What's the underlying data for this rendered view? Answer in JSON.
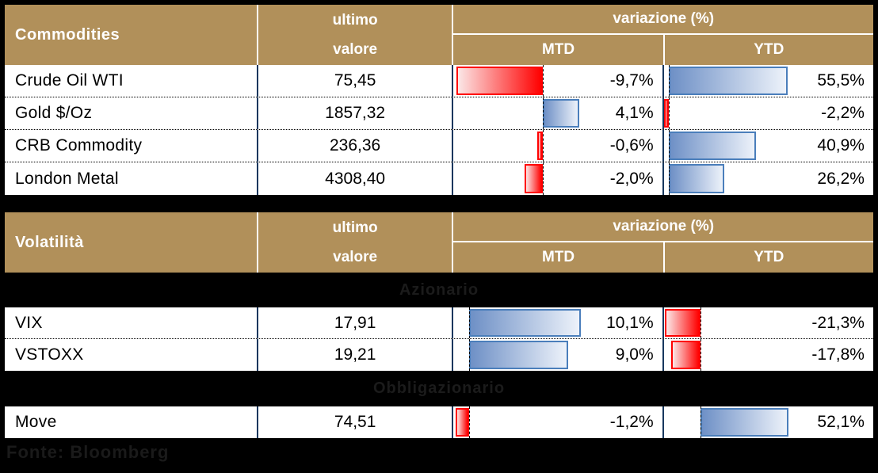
{
  "header_labels": {
    "ultimo": "ultimo",
    "valore": "valore",
    "variazione": "variazione (%)",
    "mtd": "MTD",
    "ytd": "YTD"
  },
  "tables": [
    {
      "title": "Commodities",
      "mtd_axis_pct": 42.6,
      "mtd_scale_pct_per_point": 4.26,
      "ytd_axis_pct": 2.3,
      "ytd_scale_pct_per_point": 1.022,
      "rows": [
        {
          "label": "Crude Oil WTI",
          "value": "75,45",
          "mtd": -9.7,
          "mtd_label": "-9,7%",
          "ytd": 55.5,
          "ytd_label": "55,5%"
        },
        {
          "label": "Gold $/Oz",
          "value": "1857,32",
          "mtd": 4.1,
          "mtd_label": "4,1%",
          "ytd": -2.2,
          "ytd_label": "-2,2%"
        },
        {
          "label": "CRB Commodity",
          "value": "236,36",
          "mtd": -0.6,
          "mtd_label": "-0,6%",
          "ytd": 40.9,
          "ytd_label": "40,9%"
        },
        {
          "label": "London Metal",
          "value": "4308,40",
          "mtd": -2.0,
          "mtd_label": "-2,0%",
          "ytd": 26.2,
          "ytd_label": "26,2%"
        }
      ]
    },
    {
      "title": "Volatilità",
      "mtd_axis_pct": 7.5,
      "mtd_scale_pct_per_point": 5.28,
      "ytd_axis_pct": 17.7,
      "ytd_scale_pct_per_point": 0.8,
      "sections": [
        {
          "label": "Azionario",
          "rows": [
            {
              "label": "VIX",
              "value": "17,91",
              "mtd": 10.1,
              "mtd_label": "10,1%",
              "ytd": -21.3,
              "ytd_label": "-21,3%"
            },
            {
              "label": "VSTOXX",
              "value": "19,21",
              "mtd": 9.0,
              "mtd_label": "9,0%",
              "ytd": -17.8,
              "ytd_label": "-17,8%"
            }
          ]
        },
        {
          "label": "Obbligazionario",
          "rows": [
            {
              "label": "Move",
              "value": "74,51",
              "mtd": -1.2,
              "mtd_label": "-1,2%",
              "ytd": 52.1,
              "ytd_label": "52,1%"
            }
          ]
        }
      ]
    }
  ],
  "footer": {
    "source": "Fonte: Bloomberg"
  },
  "colors": {
    "background": "#000000",
    "header_gold": "#B1905A",
    "header_text": "#FFFFFF",
    "table_text": "#000000",
    "divider_blue": "#17375E",
    "bar_positive_border": "#4A7EBB",
    "bar_positive_fill_dark": "#6E90C6",
    "bar_positive_fill_light": "#EDF2FA",
    "bar_negative_border": "#FF0000",
    "bar_negative_fill_light": "#FBE7E7",
    "bar_negative_fill_dark": "#FF0000",
    "section_label_text": "#1B1B1B"
  },
  "chart_data": [
    {
      "type": "table",
      "title": "Commodities",
      "columns": [
        "Commodities",
        "ultimo valore",
        "variazione (%) MTD",
        "variazione (%) YTD"
      ],
      "rows": [
        {
          "name": "Crude Oil WTI",
          "ultimo_valore": 75.45,
          "mtd_pct": -9.7,
          "ytd_pct": 55.5
        },
        {
          "name": "Gold $/Oz",
          "ultimo_valore": 1857.32,
          "mtd_pct": 4.1,
          "ytd_pct": -2.2
        },
        {
          "name": "CRB Commodity",
          "ultimo_valore": 236.36,
          "mtd_pct": -0.6,
          "ytd_pct": 40.9
        },
        {
          "name": "London Metal",
          "ultimo_valore": 4308.4,
          "mtd_pct": -2.0,
          "ytd_pct": 26.2
        }
      ],
      "bar_style": "in-cell data bars: blue gradient for positive, red gradient for negative, dashed zero axis"
    },
    {
      "type": "table",
      "title": "Volatilità",
      "columns": [
        "Volatilità",
        "ultimo valore",
        "variazione (%) MTD",
        "variazione (%) YTD"
      ],
      "sections": [
        {
          "label": "Azionario",
          "rows": [
            {
              "name": "VIX",
              "ultimo_valore": 17.91,
              "mtd_pct": 10.1,
              "ytd_pct": -21.3
            },
            {
              "name": "VSTOXX",
              "ultimo_valore": 19.21,
              "mtd_pct": 9.0,
              "ytd_pct": -17.8
            }
          ]
        },
        {
          "label": "Obbligazionario",
          "rows": [
            {
              "name": "Move",
              "ultimo_valore": 74.51,
              "mtd_pct": -1.2,
              "ytd_pct": 52.1
            }
          ]
        }
      ],
      "bar_style": "in-cell data bars: blue gradient for positive, red gradient for negative, dashed zero axis"
    }
  ]
}
